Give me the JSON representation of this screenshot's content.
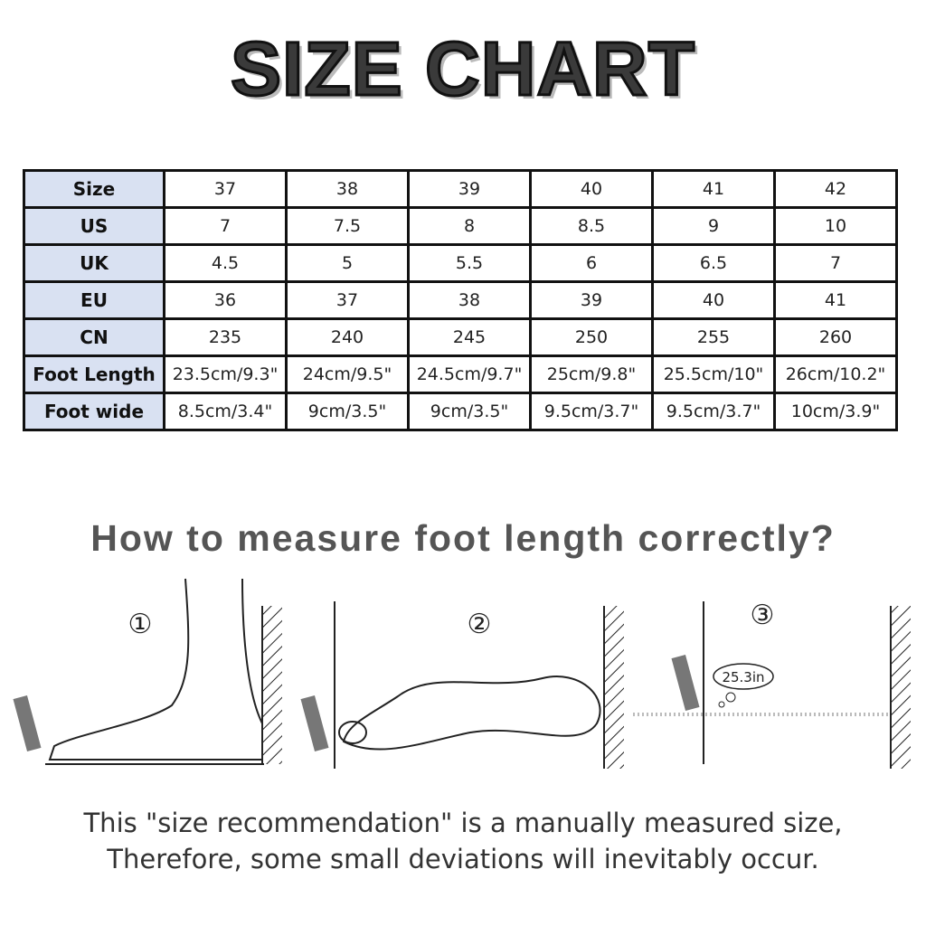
{
  "title": "SIZE CHART",
  "table": {
    "rows": [
      {
        "label": "Size",
        "values": [
          "37",
          "38",
          "39",
          "40",
          "41",
          "42"
        ]
      },
      {
        "label": "US",
        "values": [
          "7",
          "7.5",
          "8",
          "8.5",
          "9",
          "10"
        ]
      },
      {
        "label": "UK",
        "values": [
          "4.5",
          "5",
          "5.5",
          "6",
          "6.5",
          "7"
        ]
      },
      {
        "label": "EU",
        "values": [
          "36",
          "37",
          "38",
          "39",
          "40",
          "41"
        ]
      },
      {
        "label": "CN",
        "values": [
          "235",
          "240",
          "245",
          "250",
          "255",
          "260"
        ]
      },
      {
        "label": "Foot Length",
        "values": [
          "23.5cm/9.3\"",
          "24cm/9.5\"",
          "24.5cm/9.7\"",
          "25cm/9.8\"",
          "25.5cm/10\"",
          "26cm/10.2\""
        ]
      },
      {
        "label": "Foot wide",
        "values": [
          "8.5cm/3.4\"",
          "9cm/3.5\"",
          "9cm/3.5\"",
          "9.5cm/3.7\"",
          "9.5cm/3.7\"",
          "10cm/3.9\""
        ]
      }
    ],
    "header_color": "#d9e1f2"
  },
  "subtitle": "How to measure foot length correctly?",
  "steps": [
    {
      "number": "①"
    },
    {
      "number": "②"
    },
    {
      "number": "③",
      "measurement": "25.3in"
    }
  ],
  "note": {
    "line1": "This \"size recommendation\" is a manually measured size,",
    "line2": "Therefore, some small deviations will inevitably occur."
  }
}
